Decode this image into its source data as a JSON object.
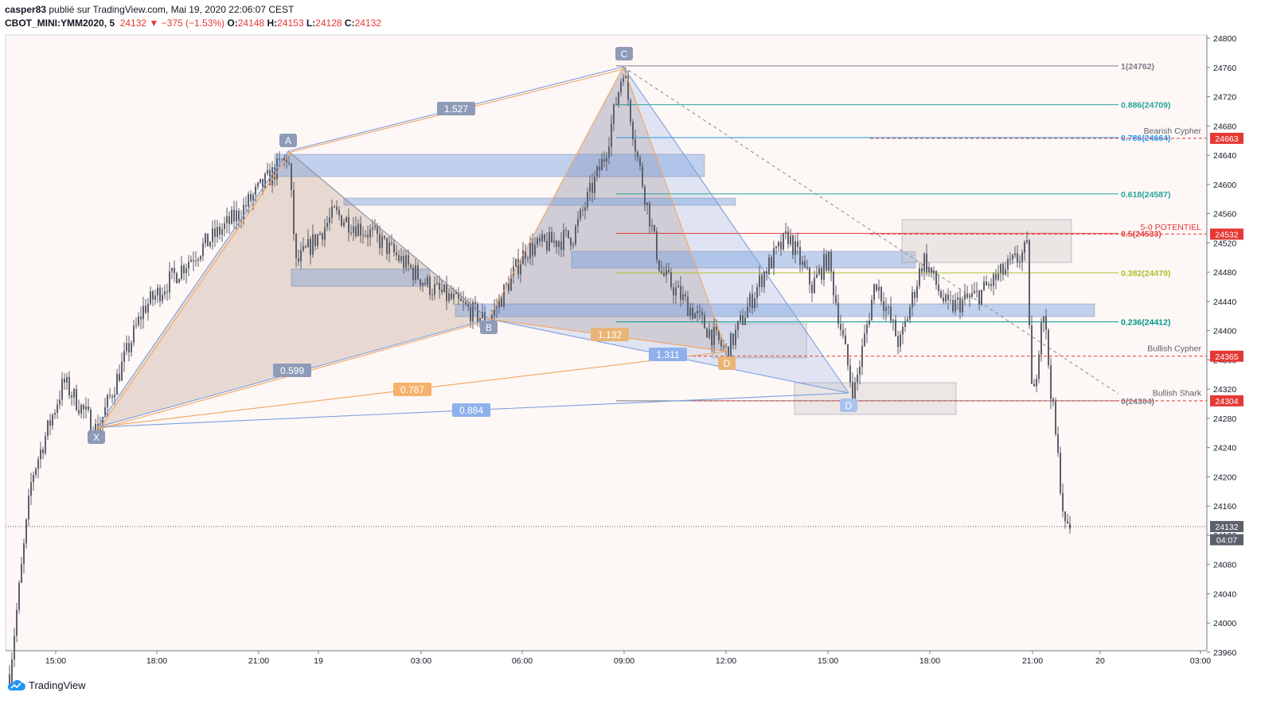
{
  "header": {
    "user": "casper83",
    "published": " publié sur TradingView.com, Mai 19, 2020 22:06:07 CEST",
    "symbol": "CBOT_MINI:YMM2020, 5",
    "last": "24132",
    "change": "−375 (−1.53%)",
    "o_label": "O:",
    "o_val": "24148",
    "h_label": "H:",
    "h_val": "24153",
    "l_label": "L:",
    "l_val": "24128",
    "c_label": "C:",
    "c_val": "24132"
  },
  "footer": {
    "brand": "TradingView"
  },
  "colors": {
    "bg": "#fdf7f6",
    "candle": "#5d606b",
    "blue_pattern": "#7b9fe0",
    "orange_pattern": "#f4a460",
    "red": "#e53935",
    "fib_green": "#26a69a",
    "fib_blue": "#2196f3",
    "fib_lime": "#a7c52a"
  },
  "chart_data": {
    "type": "candlestick",
    "yaxis": {
      "min": 23940,
      "max": 24820,
      "ticks": [
        23960,
        24000,
        24040,
        24080,
        24120,
        24160,
        24200,
        24240,
        24280,
        24320,
        24360,
        24400,
        24440,
        24480,
        24520,
        24560,
        24600,
        24640,
        24680,
        24720,
        24760,
        24800
      ]
    },
    "xaxis": {
      "tick_labels": [
        "15:00",
        "18:00",
        "21:00",
        "19",
        "03:00",
        "06:00",
        "09:00",
        "12:00",
        "15:00",
        "18:00",
        "21:00",
        "20",
        "03:00"
      ]
    },
    "price_labels": [
      {
        "text": "24663",
        "value": 24663,
        "color": "#e53935"
      },
      {
        "text": "24532",
        "value": 24532,
        "color": "#e53935"
      },
      {
        "text": "24365",
        "value": 24365,
        "color": "#e53935"
      },
      {
        "text": "24304",
        "value": 24304,
        "color": "#e53935"
      },
      {
        "text": "24132",
        "value": 24132,
        "color": "#5d606b"
      },
      {
        "text": "04:07",
        "value": 24114,
        "color": "#5d606b"
      }
    ],
    "fib_levels": [
      {
        "label": "1(24762)",
        "value": 24762,
        "color": "#787b86"
      },
      {
        "label": "0.886(24709)",
        "value": 24709,
        "color": "#26a69a"
      },
      {
        "label": "0.786(24664)",
        "value": 24664,
        "color": "#2196f3"
      },
      {
        "label": "0.618(24587)",
        "value": 24587,
        "color": "#26a69a"
      },
      {
        "label": "0.5(24533)",
        "value": 24533,
        "color": "#e53935"
      },
      {
        "label": "0.382(24479)",
        "value": 24479,
        "color": "#a7c52a"
      },
      {
        "label": "0.236(24412)",
        "value": 24412,
        "color": "#009688"
      },
      {
        "label": "0(24304)",
        "value": 24304,
        "color": "#787b86"
      }
    ],
    "annotations": [
      {
        "text": "Bearish Cypher",
        "value": 24674
      },
      {
        "text": "5-0 POTENTIEL",
        "value": 24542
      },
      {
        "text": "Bullish Cypher",
        "value": 24376
      },
      {
        "text": "Bullish Shark",
        "value": 24315
      }
    ],
    "pattern_points": [
      "X",
      "A",
      "B",
      "C",
      "D",
      "D"
    ],
    "ratios_blue": [
      "1.527",
      "0.599",
      "1.311",
      "0.884"
    ],
    "ratios_orange": [
      "1.132",
      "0.787"
    ]
  }
}
